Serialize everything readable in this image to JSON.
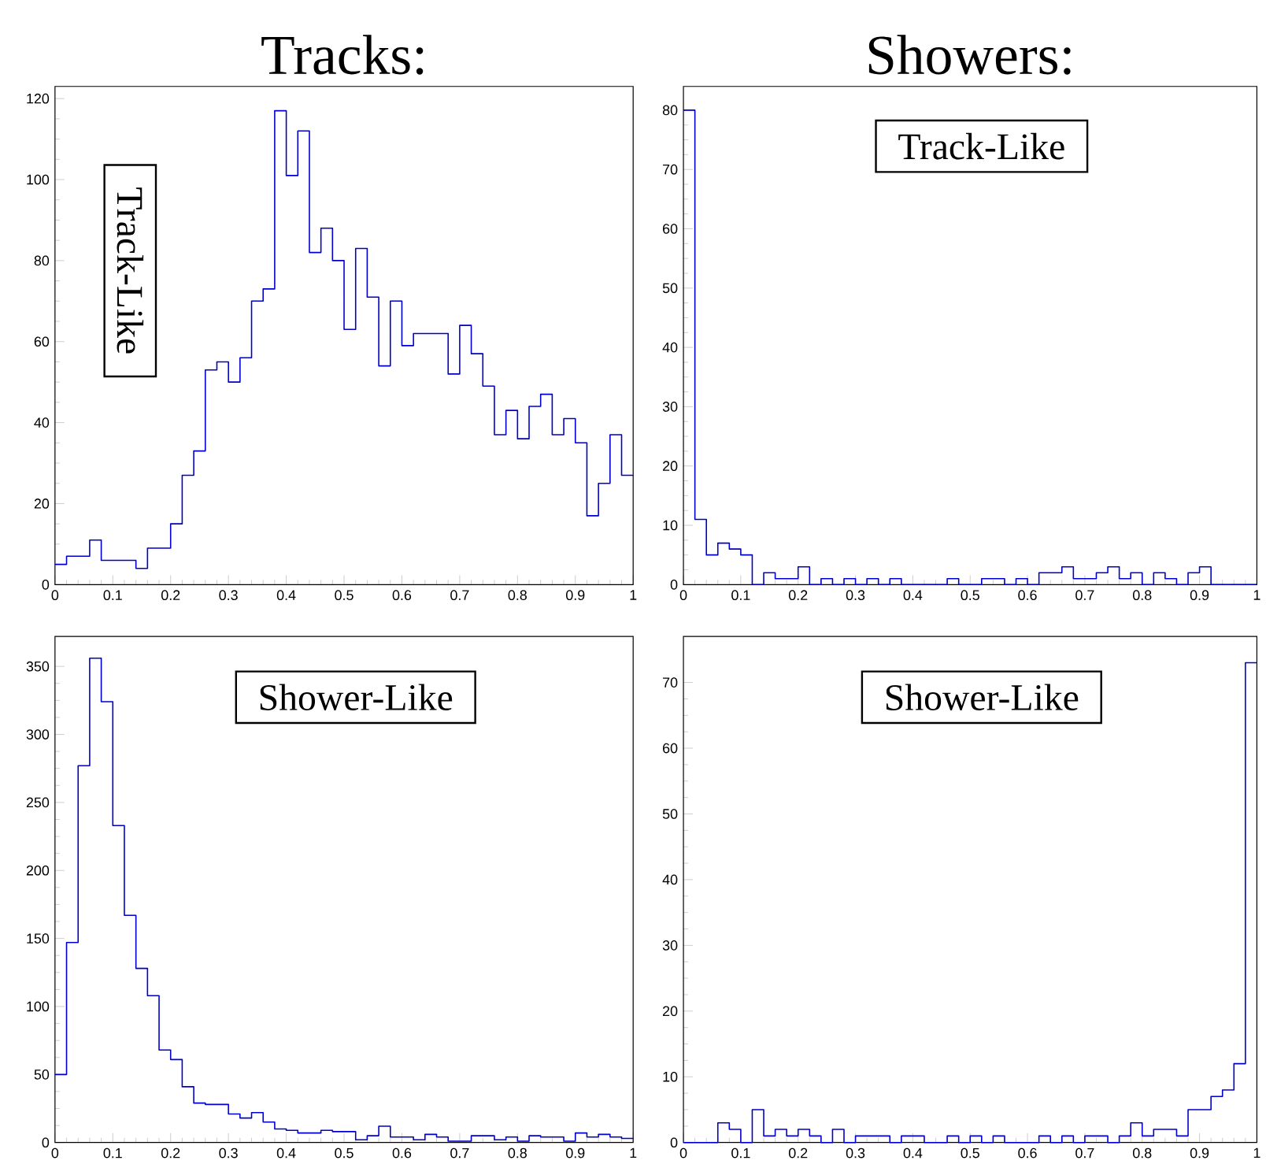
{
  "chart_data": [
    {
      "type": "histogram",
      "title": "Tracks:",
      "annotations": [
        "Track-Like"
      ],
      "color": "#0000cc",
      "bins": [
        0,
        0.02,
        0.04,
        0.06,
        0.08,
        0.1,
        0.12,
        0.14,
        0.16,
        0.18,
        0.2,
        0.22,
        0.24,
        0.26,
        0.28,
        0.3,
        0.32,
        0.34,
        0.36,
        0.38,
        0.4,
        0.42,
        0.44,
        0.46,
        0.48,
        0.5,
        0.52,
        0.54,
        0.56,
        0.58,
        0.6,
        0.62,
        0.64,
        0.66,
        0.68,
        0.7,
        0.72,
        0.74,
        0.76,
        0.78,
        0.8,
        0.82,
        0.84,
        0.86,
        0.88,
        0.9,
        0.92,
        0.94,
        0.96,
        0.98,
        1
      ],
      "values": [
        5,
        7,
        7,
        11,
        6,
        6,
        6,
        4,
        9,
        9,
        15,
        27,
        33,
        53,
        55,
        50,
        56,
        70,
        73,
        117,
        101,
        112,
        82,
        88,
        80,
        63,
        83,
        71,
        54,
        70,
        59,
        62,
        62,
        62,
        52,
        64,
        57,
        49,
        37,
        43,
        36,
        44,
        47,
        37,
        41,
        35,
        17,
        25,
        37,
        27
      ],
      "xlim": [
        0,
        1
      ],
      "ylim": [
        0,
        123
      ],
      "xticks": [
        0,
        0.1,
        0.2,
        0.3,
        0.4,
        0.5,
        0.6,
        0.7,
        0.8,
        0.9,
        1
      ],
      "yticks": [
        0,
        20,
        40,
        60,
        80,
        100,
        120
      ]
    },
    {
      "type": "histogram",
      "title": "Showers:",
      "annotations": [
        "Track-Like"
      ],
      "color": "#0000cc",
      "bins": [
        0,
        0.02,
        0.04,
        0.06,
        0.08,
        0.1,
        0.12,
        0.14,
        0.16,
        0.18,
        0.2,
        0.22,
        0.24,
        0.26,
        0.28,
        0.3,
        0.32,
        0.34,
        0.36,
        0.38,
        0.4,
        0.42,
        0.44,
        0.46,
        0.48,
        0.5,
        0.52,
        0.54,
        0.56,
        0.58,
        0.6,
        0.62,
        0.64,
        0.66,
        0.68,
        0.7,
        0.72,
        0.74,
        0.76,
        0.78,
        0.8,
        0.82,
        0.84,
        0.86,
        0.88,
        0.9,
        0.92,
        0.94,
        0.96,
        0.98,
        1
      ],
      "values": [
        80,
        11,
        5,
        7,
        6,
        5,
        0,
        2,
        1,
        1,
        3,
        0,
        1,
        0,
        1,
        0,
        1,
        0,
        1,
        0,
        0,
        0,
        0,
        1,
        0,
        0,
        1,
        1,
        0,
        1,
        0,
        2,
        2,
        3,
        1,
        1,
        2,
        3,
        1,
        2,
        0,
        2,
        1,
        0,
        2,
        3,
        0,
        0,
        0,
        0
      ],
      "xlim": [
        0,
        1
      ],
      "ylim": [
        0,
        84
      ],
      "xticks": [
        0,
        0.1,
        0.2,
        0.3,
        0.4,
        0.5,
        0.6,
        0.7,
        0.8,
        0.9,
        1
      ],
      "yticks": [
        0,
        10,
        20,
        30,
        40,
        50,
        60,
        70,
        80
      ]
    },
    {
      "type": "histogram",
      "annotations": [
        "Shower-Like"
      ],
      "color": "#0000cc",
      "bins": [
        0,
        0.02,
        0.04,
        0.06,
        0.08,
        0.1,
        0.12,
        0.14,
        0.16,
        0.18,
        0.2,
        0.22,
        0.24,
        0.26,
        0.28,
        0.3,
        0.32,
        0.34,
        0.36,
        0.38,
        0.4,
        0.42,
        0.44,
        0.46,
        0.48,
        0.5,
        0.52,
        0.54,
        0.56,
        0.58,
        0.6,
        0.62,
        0.64,
        0.66,
        0.68,
        0.7,
        0.72,
        0.74,
        0.76,
        0.78,
        0.8,
        0.82,
        0.84,
        0.86,
        0.88,
        0.9,
        0.92,
        0.94,
        0.96,
        0.98,
        1
      ],
      "values": [
        50,
        147,
        277,
        356,
        324,
        233,
        167,
        128,
        108,
        68,
        61,
        41,
        29,
        28,
        28,
        21,
        18,
        22,
        15,
        10,
        9,
        7,
        7,
        9,
        8,
        8,
        2,
        5,
        12,
        4,
        4,
        2,
        6,
        4,
        1,
        1,
        5,
        5,
        2,
        4,
        1,
        5,
        4,
        4,
        1,
        7,
        4,
        6,
        4,
        3
      ],
      "xlim": [
        0,
        1
      ],
      "ylim": [
        0,
        372
      ],
      "xticks": [
        0,
        0.1,
        0.2,
        0.3,
        0.4,
        0.5,
        0.6,
        0.7,
        0.8,
        0.9,
        1
      ],
      "yticks": [
        0,
        50,
        100,
        150,
        200,
        250,
        300,
        350
      ]
    },
    {
      "type": "histogram",
      "annotations": [
        "Shower-Like"
      ],
      "color": "#0000cc",
      "bins": [
        0,
        0.02,
        0.04,
        0.06,
        0.08,
        0.1,
        0.12,
        0.14,
        0.16,
        0.18,
        0.2,
        0.22,
        0.24,
        0.26,
        0.28,
        0.3,
        0.32,
        0.34,
        0.36,
        0.38,
        0.4,
        0.42,
        0.44,
        0.46,
        0.48,
        0.5,
        0.52,
        0.54,
        0.56,
        0.58,
        0.6,
        0.62,
        0.64,
        0.66,
        0.68,
        0.7,
        0.72,
        0.74,
        0.76,
        0.78,
        0.8,
        0.82,
        0.84,
        0.86,
        0.88,
        0.9,
        0.92,
        0.94,
        0.96,
        0.98,
        1
      ],
      "values": [
        0,
        0,
        0,
        3,
        2,
        0,
        5,
        1,
        2,
        1,
        2,
        1,
        0,
        2,
        0,
        1,
        1,
        1,
        0,
        1,
        1,
        0,
        0,
        1,
        0,
        1,
        0,
        1,
        0,
        0,
        0,
        1,
        0,
        1,
        0,
        1,
        1,
        0,
        1,
        3,
        1,
        2,
        2,
        1,
        5,
        5,
        7,
        8,
        12,
        73
      ],
      "xlim": [
        0,
        1
      ],
      "ylim": [
        0,
        77
      ],
      "xticks": [
        0,
        0.1,
        0.2,
        0.3,
        0.4,
        0.5,
        0.6,
        0.7,
        0.8,
        0.9,
        1
      ],
      "yticks": [
        0,
        10,
        20,
        30,
        40,
        50,
        60,
        70
      ]
    }
  ]
}
